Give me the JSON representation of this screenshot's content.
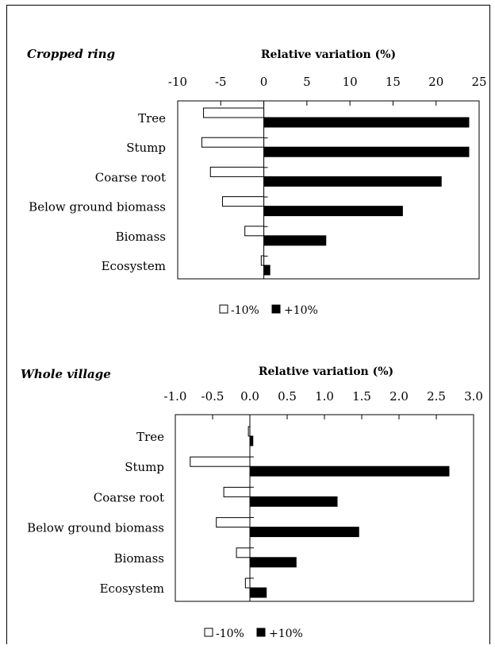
{
  "chart_data": [
    {
      "type": "bar",
      "title": "Cropped ring",
      "xlabel": "Relative variation (%)",
      "xlim": [
        -10,
        25
      ],
      "xticks": [
        "-10",
        "-5",
        "0",
        "5",
        "10",
        "15",
        "20",
        "25"
      ],
      "xtick_values": [
        -10,
        -5,
        0,
        5,
        10,
        15,
        20,
        25
      ],
      "categories": [
        "Tree",
        "Stump",
        "Coarse root",
        "Below ground biomass",
        "Biomass",
        "Ecosystem"
      ],
      "series": [
        {
          "name": "-10%",
          "color": "#ffffff",
          "values": [
            -7,
            -7.2,
            -6.2,
            -4.8,
            -2.2,
            -0.3
          ]
        },
        {
          "name": "+10%",
          "color": "#000000",
          "values": [
            23.8,
            23.8,
            20.6,
            16.1,
            7.2,
            0.7
          ]
        }
      ],
      "legend": {
        "position": "bottom",
        "items": [
          "-10%",
          "+10%"
        ]
      }
    },
    {
      "type": "bar",
      "title": "Whole village",
      "xlabel": "Relative variation (%)",
      "xlim": [
        -1.0,
        3.0
      ],
      "xticks": [
        "-1.0",
        "-0.5",
        "0.0",
        "0.5",
        "1.0",
        "1.5",
        "2.0",
        "2.5",
        "3.0"
      ],
      "xtick_values": [
        -1.0,
        -0.5,
        0.0,
        0.5,
        1.0,
        1.5,
        2.0,
        2.5,
        3.0
      ],
      "categories": [
        "Tree",
        "Stump",
        "Coarse root",
        "Below ground biomass",
        "Biomass",
        "Ecosystem"
      ],
      "series": [
        {
          "name": "-10%",
          "color": "#ffffff",
          "values": [
            -0.02,
            -0.8,
            -0.35,
            -0.45,
            -0.18,
            -0.06
          ]
        },
        {
          "name": "+10%",
          "color": "#000000",
          "values": [
            0.04,
            2.67,
            1.17,
            1.46,
            0.62,
            0.22
          ]
        }
      ],
      "legend": {
        "position": "bottom",
        "items": [
          "-10%",
          "+10%"
        ]
      }
    }
  ]
}
